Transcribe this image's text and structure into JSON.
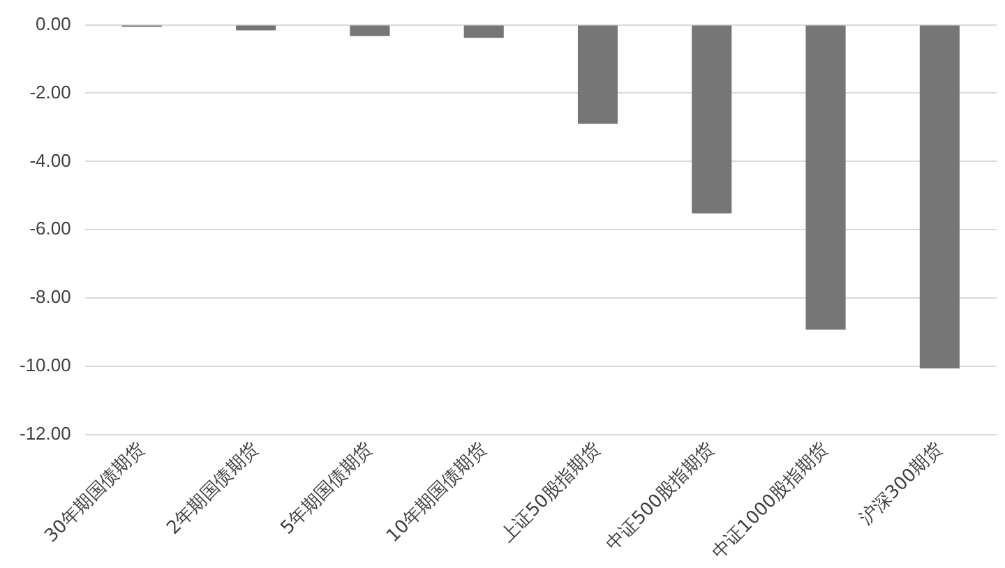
{
  "chart_data": {
    "type": "bar",
    "categories": [
      "30年期国债期货",
      "2年期国债期货",
      "5年期国债期货",
      "10年期国债期货",
      "上证50股指期货",
      "中证500股指期货",
      "中证1000股指期货",
      "沪深300期货"
    ],
    "values": [
      -0.06,
      -0.16,
      -0.33,
      -0.38,
      -2.9,
      -5.52,
      -8.93,
      -10.06
    ],
    "color": "#767676",
    "ylim": [
      -12,
      0
    ],
    "yticks": [
      {
        "value": 0,
        "label": "0.00"
      },
      {
        "value": -2,
        "label": "-2.00"
      },
      {
        "value": -4,
        "label": "-4.00"
      },
      {
        "value": -6,
        "label": "-6.00"
      },
      {
        "value": -8,
        "label": "-8.00"
      },
      {
        "value": -10,
        "label": "-10.00"
      },
      {
        "value": -12,
        "label": "-12.00"
      }
    ],
    "grid": "y"
  }
}
